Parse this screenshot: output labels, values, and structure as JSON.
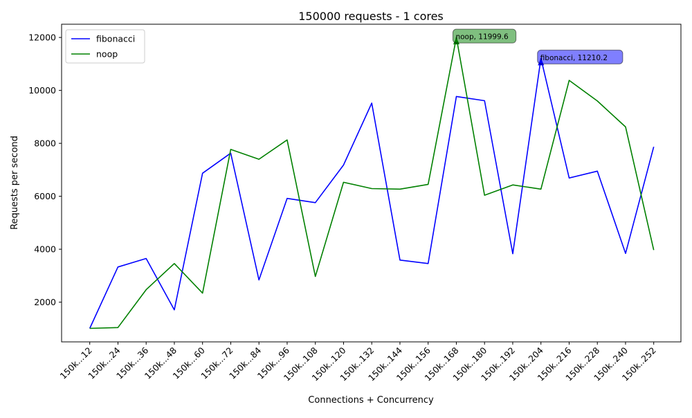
{
  "chart_data": {
    "type": "line",
    "title": "150000 requests - 1 cores",
    "xlabel": "Connections + Concurrency",
    "ylabel": "Requests per second",
    "categories": [
      "150k...12",
      "150k...24",
      "150k...36",
      "150k...48",
      "150k...60",
      "150k...72",
      "150k...84",
      "150k...96",
      "150k..108",
      "150k..120",
      "150k..132",
      "150k..144",
      "150k..156",
      "150k..168",
      "150k..180",
      "150k..192",
      "150k..204",
      "150k..216",
      "150k..228",
      "150k..240",
      "150k..252"
    ],
    "ylim": [
      500,
      12500
    ],
    "yticks": [
      2000,
      4000,
      6000,
      8000,
      10000,
      12000
    ],
    "grid": false,
    "legend_position": "top-left",
    "series": [
      {
        "name": "fibonacci",
        "color": "#0000ff",
        "values": [
          1010,
          3330,
          3650,
          1710,
          6870,
          7630,
          2840,
          5920,
          5760,
          7180,
          9520,
          3590,
          3460,
          9770,
          9610,
          3830,
          11210.2,
          6690,
          6950,
          3840,
          7870
        ]
      },
      {
        "name": "noop",
        "color": "#008000",
        "values": [
          1010,
          1040,
          2470,
          3460,
          2340,
          7770,
          7400,
          8130,
          2970,
          6530,
          6290,
          6270,
          6450,
          11999.6,
          6040,
          6430,
          6270,
          10380,
          9600,
          8620,
          3970
        ]
      }
    ],
    "annotations": [
      {
        "series": "noop",
        "index": 13,
        "text": "noop, 11999.6",
        "box_color": "#008000"
      },
      {
        "series": "fibonacci",
        "index": 16,
        "text": "fibonacci, 11210.2",
        "box_color": "#0000ff"
      }
    ]
  }
}
